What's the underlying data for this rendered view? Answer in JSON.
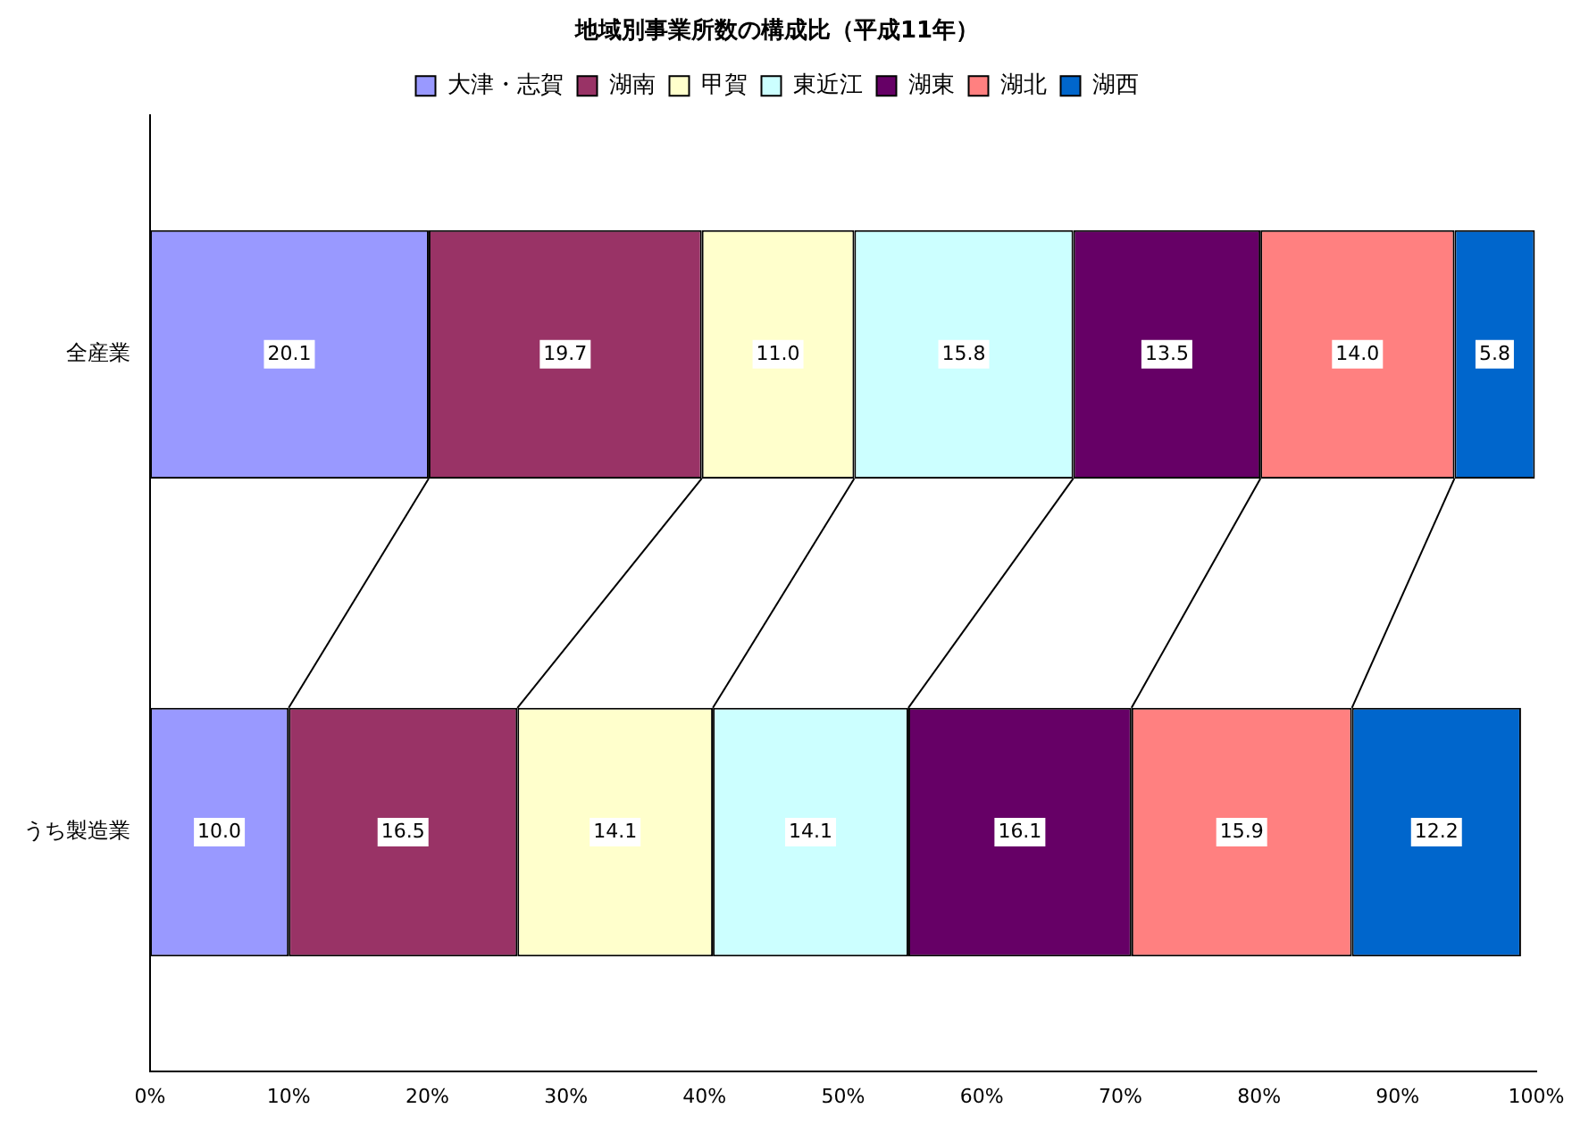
{
  "chart_data": {
    "type": "bar",
    "orientation": "horizontal",
    "stacked": true,
    "title": "地域別事業所数の構成比（平成11年）",
    "categories": [
      "全産業",
      "うち製造業"
    ],
    "series": [
      {
        "name": "大津・志賀",
        "color": "#9999ff",
        "values": [
          20.1,
          10.0
        ],
        "value_labels": [
          "20.1",
          "10.0"
        ]
      },
      {
        "name": "湖南",
        "color": "#993366",
        "values": [
          19.7,
          16.5
        ],
        "value_labels": [
          "19.7",
          "16.5"
        ]
      },
      {
        "name": "甲賀",
        "color": "#ffffcc",
        "values": [
          11.0,
          14.1
        ],
        "value_labels": [
          "11.0",
          "14.1"
        ]
      },
      {
        "name": "東近江",
        "color": "#ccffff",
        "values": [
          15.8,
          14.1
        ],
        "value_labels": [
          "15.8",
          "14.1"
        ]
      },
      {
        "name": "湖東",
        "color": "#660066",
        "values": [
          13.5,
          16.1
        ],
        "value_labels": [
          "13.5",
          "16.1"
        ]
      },
      {
        "name": "湖北",
        "color": "#ff8080",
        "values": [
          14.0,
          15.9
        ],
        "value_labels": [
          "14.0",
          "15.9"
        ]
      },
      {
        "name": "湖西",
        "color": "#0066cc",
        "values": [
          5.8,
          12.2
        ],
        "value_labels": [
          "5.8",
          "12.2"
        ]
      }
    ],
    "xlim": [
      0,
      100
    ],
    "xticks": [
      {
        "value": 0,
        "label": "0%"
      },
      {
        "value": 10,
        "label": "10%"
      },
      {
        "value": 20,
        "label": "20%"
      },
      {
        "value": 30,
        "label": "30%"
      },
      {
        "value": 40,
        "label": "40%"
      },
      {
        "value": 50,
        "label": "50%"
      },
      {
        "value": 60,
        "label": "60%"
      },
      {
        "value": 70,
        "label": "70%"
      },
      {
        "value": 80,
        "label": "80%"
      },
      {
        "value": 90,
        "label": "90%"
      },
      {
        "value": 100,
        "label": "100%"
      }
    ],
    "legend": "top",
    "grid": false
  }
}
